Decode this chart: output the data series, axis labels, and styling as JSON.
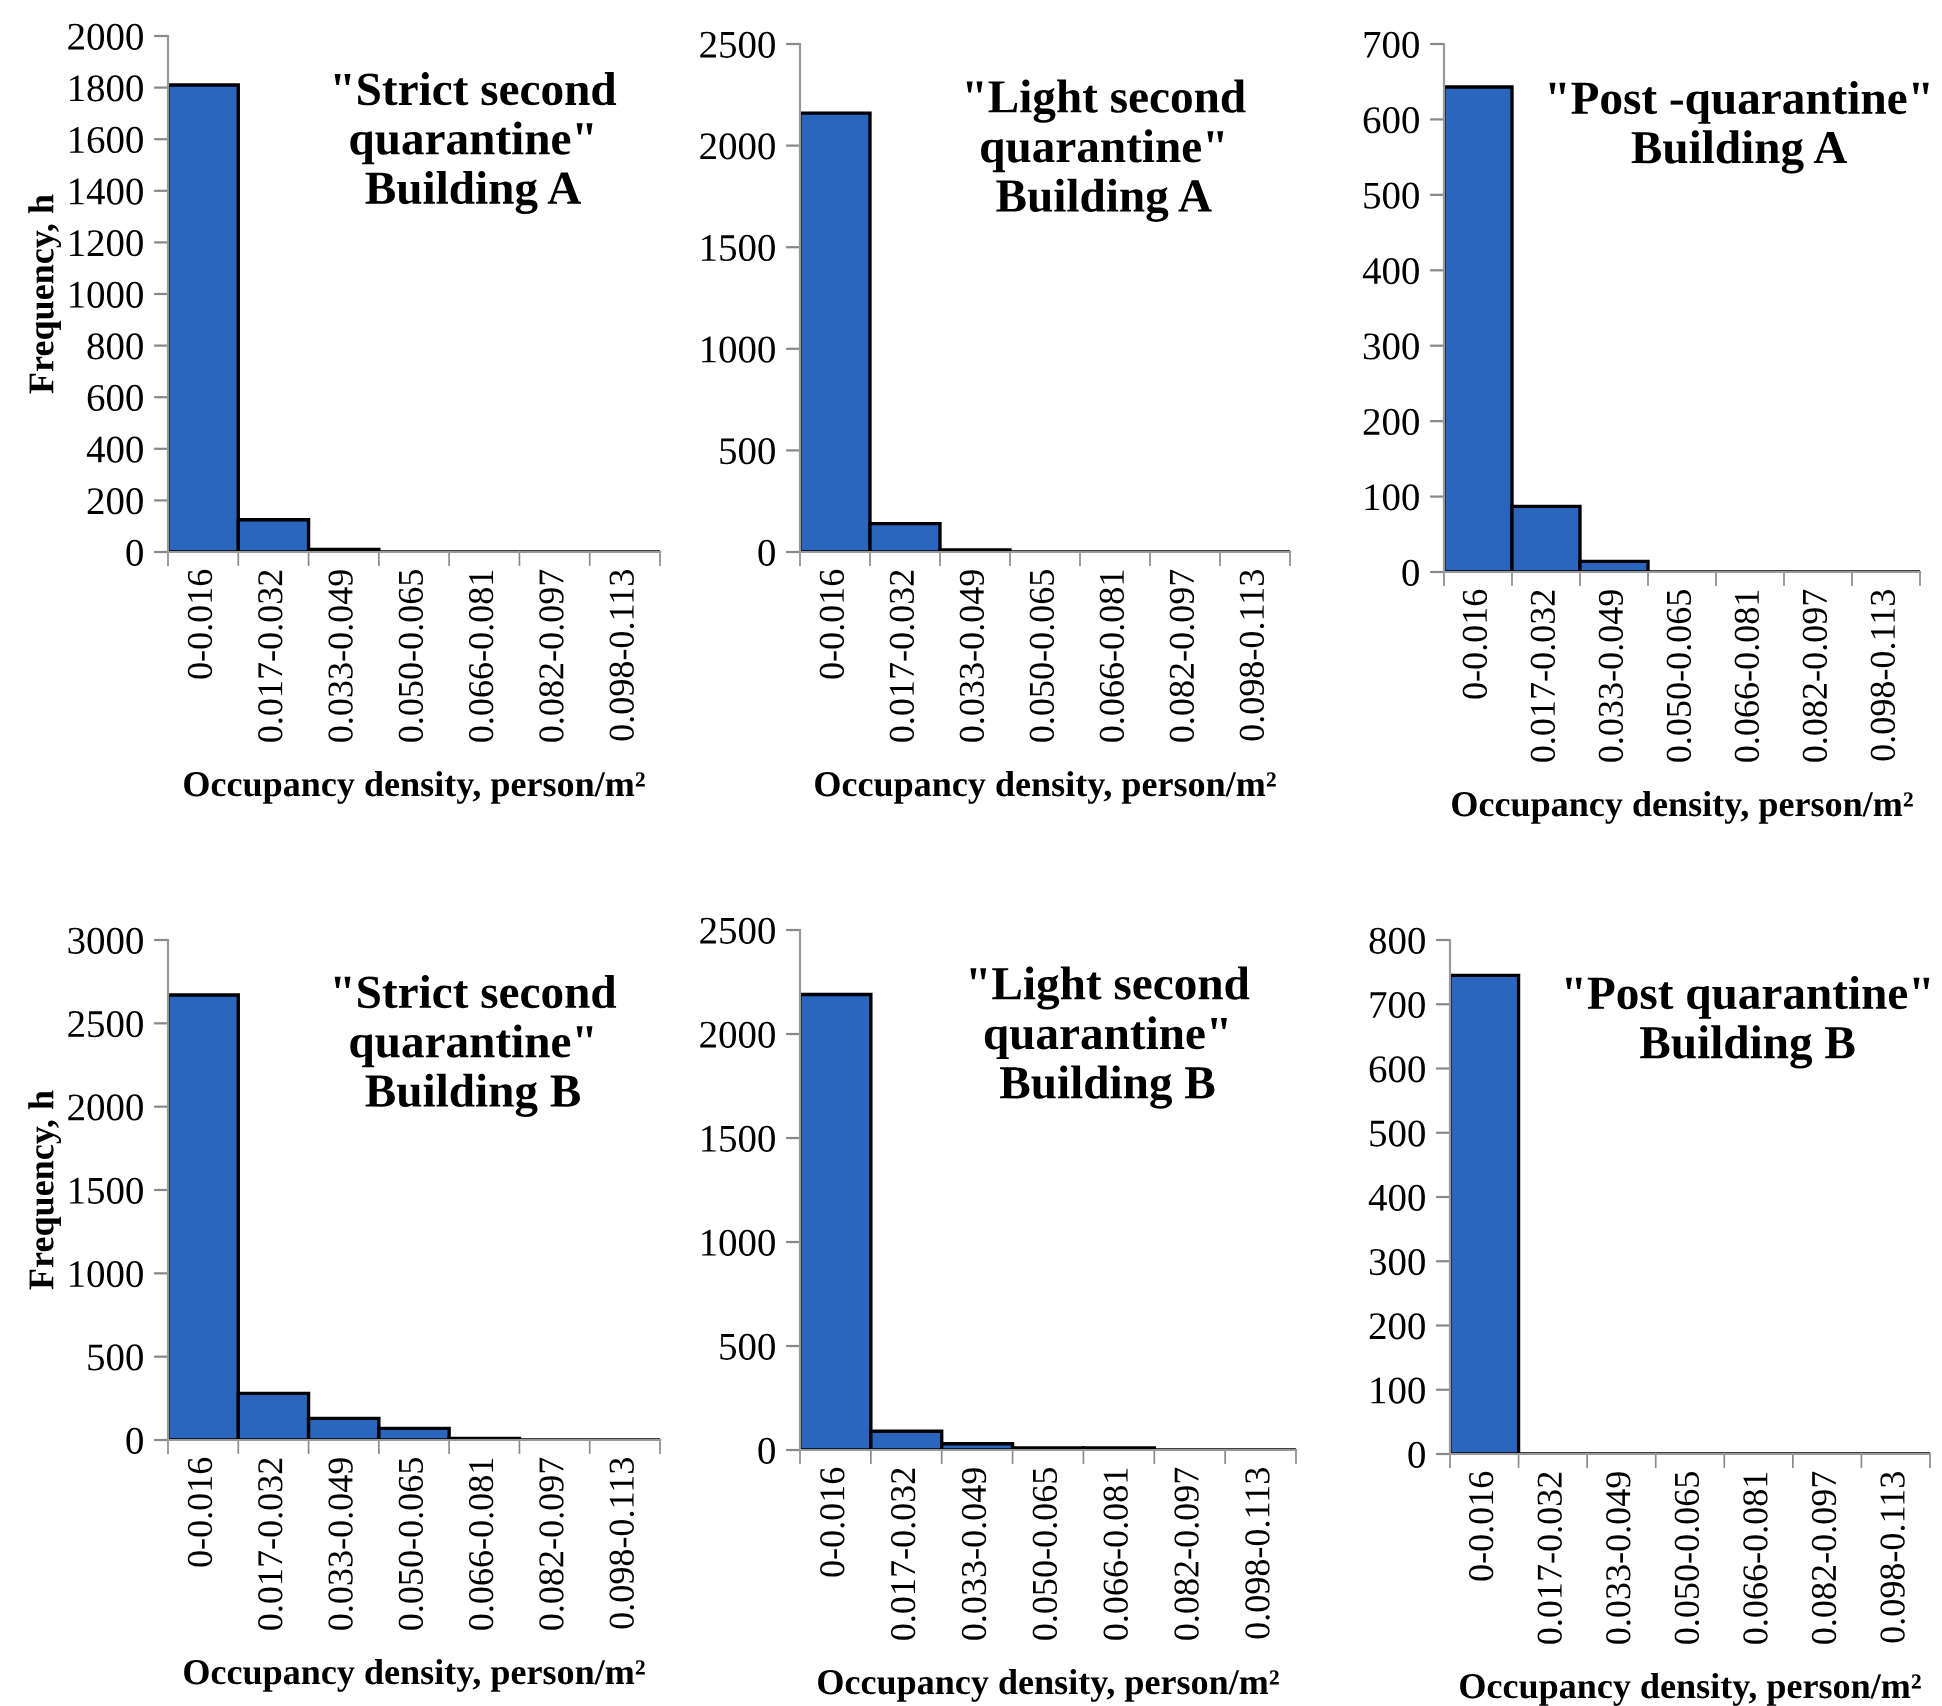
{
  "chart_data": [
    {
      "type": "bar",
      "title": "\"Strict second\nquarantine\"\nBuilding A",
      "ylabel": "Frequency, h",
      "xlabel": "Occupancy density, person/m²",
      "categories": [
        "0-0.016",
        "0.017-0.032",
        "0.033-0.049",
        "0.050-0.065",
        "0.066-0.081",
        "0.082-0.097",
        "0.098-0.113"
      ],
      "values": [
        1810,
        125,
        10,
        0,
        0,
        0,
        0
      ],
      "color": "#2a66be",
      "ylim": [
        0,
        2000
      ],
      "yticks": [
        0,
        200,
        400,
        600,
        800,
        1000,
        1200,
        1400,
        1600,
        1800,
        2000
      ],
      "grid": false,
      "legend": false
    },
    {
      "type": "bar",
      "title": "\"Light second\nquarantine\"\nBuilding A",
      "xlabel": "Occupancy density, person/m²",
      "categories": [
        "0-0.016",
        "0.017-0.032",
        "0.033-0.049",
        "0.050-0.065",
        "0.066-0.081",
        "0.082-0.097",
        "0.098-0.113"
      ],
      "values": [
        2160,
        140,
        10,
        0,
        0,
        0,
        0
      ],
      "color": "#2a66be",
      "ylim": [
        0,
        2500
      ],
      "yticks": [
        0,
        500,
        1000,
        1500,
        2000,
        2500
      ],
      "grid": false,
      "legend": false
    },
    {
      "type": "bar",
      "title": "\"Post -quarantine\"\nBuilding A",
      "xlabel": "Occupancy density, person/m²",
      "categories": [
        "0-0.016",
        "0.017-0.032",
        "0.033-0.049",
        "0.050-0.065",
        "0.066-0.081",
        "0.082-0.097",
        "0.098-0.113"
      ],
      "values": [
        643,
        87,
        14,
        0,
        0,
        0,
        0
      ],
      "color": "#2a66be",
      "ylim": [
        0,
        700
      ],
      "yticks": [
        0,
        100,
        200,
        300,
        400,
        500,
        600,
        700
      ],
      "grid": false,
      "legend": false
    },
    {
      "type": "bar",
      "title": "\"Strict second\nquarantine\"\nBuilding B",
      "ylabel": "Frequency, h",
      "xlabel": "Occupancy density, person/m²",
      "categories": [
        "0-0.016",
        "0.017-0.032",
        "0.033-0.049",
        "0.050-0.065",
        "0.066-0.081",
        "0.082-0.097",
        "0.098-0.113"
      ],
      "values": [
        2670,
        280,
        130,
        70,
        10,
        0,
        0
      ],
      "color": "#2a66be",
      "ylim": [
        0,
        3000
      ],
      "yticks": [
        0,
        500,
        1000,
        1500,
        2000,
        2500,
        3000
      ],
      "grid": false,
      "legend": false
    },
    {
      "type": "bar",
      "title": "\"Light second\nquarantine\"\nBuilding B",
      "xlabel": "Occupancy density, person/m²",
      "categories": [
        "0-0.016",
        "0.017-0.032",
        "0.033-0.049",
        "0.050-0.065",
        "0.066-0.081",
        "0.082-0.097",
        "0.098-0.113"
      ],
      "values": [
        2190,
        90,
        30,
        10,
        10,
        0,
        0
      ],
      "color": "#2a66be",
      "ylim": [
        0,
        2500
      ],
      "yticks": [
        0,
        500,
        1000,
        1500,
        2000,
        2500
      ],
      "grid": false,
      "legend": false
    },
    {
      "type": "bar",
      "title": "\"Post quarantine\"\nBuilding B",
      "xlabel": "Occupancy density, person/m²",
      "categories": [
        "0-0.016",
        "0.017-0.032",
        "0.033-0.049",
        "0.050-0.065",
        "0.066-0.081",
        "0.082-0.097",
        "0.098-0.113"
      ],
      "values": [
        745,
        0,
        0,
        0,
        0,
        0,
        0
      ],
      "color": "#2a66be",
      "ylim": [
        0,
        800
      ],
      "yticks": [
        0,
        100,
        200,
        300,
        400,
        500,
        600,
        700,
        800
      ],
      "grid": false,
      "legend": false
    }
  ]
}
